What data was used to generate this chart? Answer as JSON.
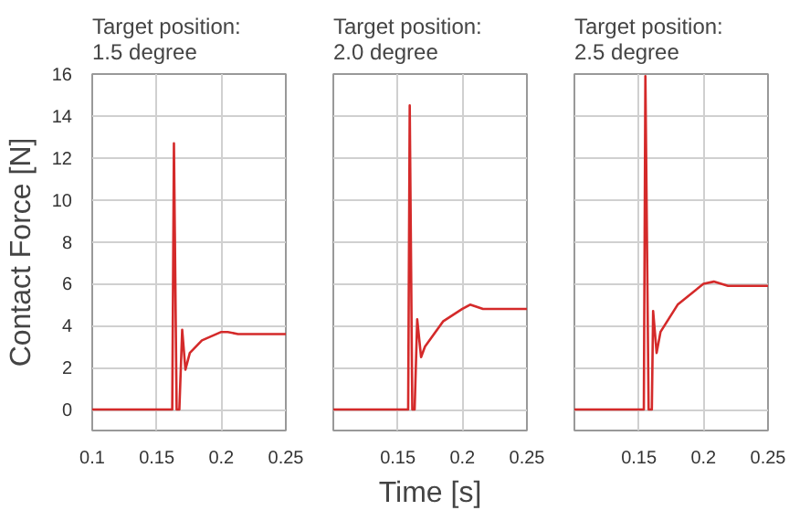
{
  "chart_data": [
    {
      "type": "line",
      "title": "Target position:\n1.5 degree",
      "ylabel": "Contact Force [N]",
      "xlim": [
        0.1,
        0.25
      ],
      "ylim": [
        -1,
        16
      ],
      "xticks": [
        0.1,
        0.15,
        0.2,
        0.25
      ],
      "yticks": [
        0,
        2,
        4,
        6,
        8,
        10,
        12,
        14,
        16
      ],
      "grid": true,
      "series": [
        {
          "color": "#d42a2a",
          "x": [
            0.1,
            0.162,
            0.1633,
            0.1654,
            0.1675,
            0.1697,
            0.1722,
            0.1756,
            0.185,
            0.2,
            0.205,
            0.213,
            0.25
          ],
          "values": [
            0,
            0,
            12.7,
            0,
            0,
            3.8,
            1.9,
            2.7,
            3.3,
            3.7,
            3.7,
            3.6,
            3.6
          ]
        }
      ]
    },
    {
      "type": "line",
      "title": "Target position:\n2.0 degree",
      "xlabel": "Time [s]",
      "xlim": [
        0.1,
        0.25
      ],
      "ylim": [
        -1,
        16
      ],
      "xticks": [
        0.15,
        0.2,
        0.25
      ],
      "yticks": [
        {
          "value": 0,
          "label": null
        },
        {
          "value": 2,
          "label": null
        },
        {
          "value": 4,
          "label": null
        },
        {
          "value": 6,
          "label": null
        },
        {
          "value": 8,
          "label": null
        },
        {
          "value": 10,
          "label": null
        },
        {
          "value": 12,
          "label": null
        },
        {
          "value": 14,
          "label": null
        },
        {
          "value": 16,
          "label": null
        }
      ],
      "grid": true,
      "tick_labels": "x",
      "series": [
        {
          "color": "#d42a2a",
          "x": [
            0.1,
            0.158,
            0.1592,
            0.1612,
            0.163,
            0.165,
            0.168,
            0.171,
            0.185,
            0.2,
            0.206,
            0.216,
            0.25
          ],
          "values": [
            0,
            0,
            14.5,
            0,
            0,
            4.3,
            2.5,
            3.0,
            4.2,
            4.8,
            5.0,
            4.8,
            4.8
          ]
        }
      ]
    },
    {
      "type": "line",
      "title": "Target position:\n2.5 degree",
      "xlim": [
        0.1,
        0.25
      ],
      "ylim": [
        -1,
        16
      ],
      "xticks": [
        0.15,
        0.2,
        0.25
      ],
      "yticks": [
        {
          "value": 0,
          "label": null
        },
        {
          "value": 2,
          "label": null
        },
        {
          "value": 4,
          "label": null
        },
        {
          "value": 6,
          "label": null
        },
        {
          "value": 8,
          "label": null
        },
        {
          "value": 10,
          "label": null
        },
        {
          "value": 12,
          "label": null
        },
        {
          "value": 14,
          "label": null
        },
        {
          "value": 16,
          "label": null
        }
      ],
      "grid": true,
      "tick_labels": "x",
      "series": [
        {
          "color": "#d42a2a",
          "x": [
            0.1,
            0.1538,
            0.155,
            0.1575,
            0.16,
            0.161,
            0.1637,
            0.1667,
            0.18,
            0.2,
            0.208,
            0.219,
            0.25
          ],
          "values": [
            0,
            0,
            15.9,
            0,
            0,
            4.7,
            2.7,
            3.7,
            5.0,
            6.0,
            6.1,
            5.9,
            5.9
          ]
        }
      ]
    }
  ]
}
